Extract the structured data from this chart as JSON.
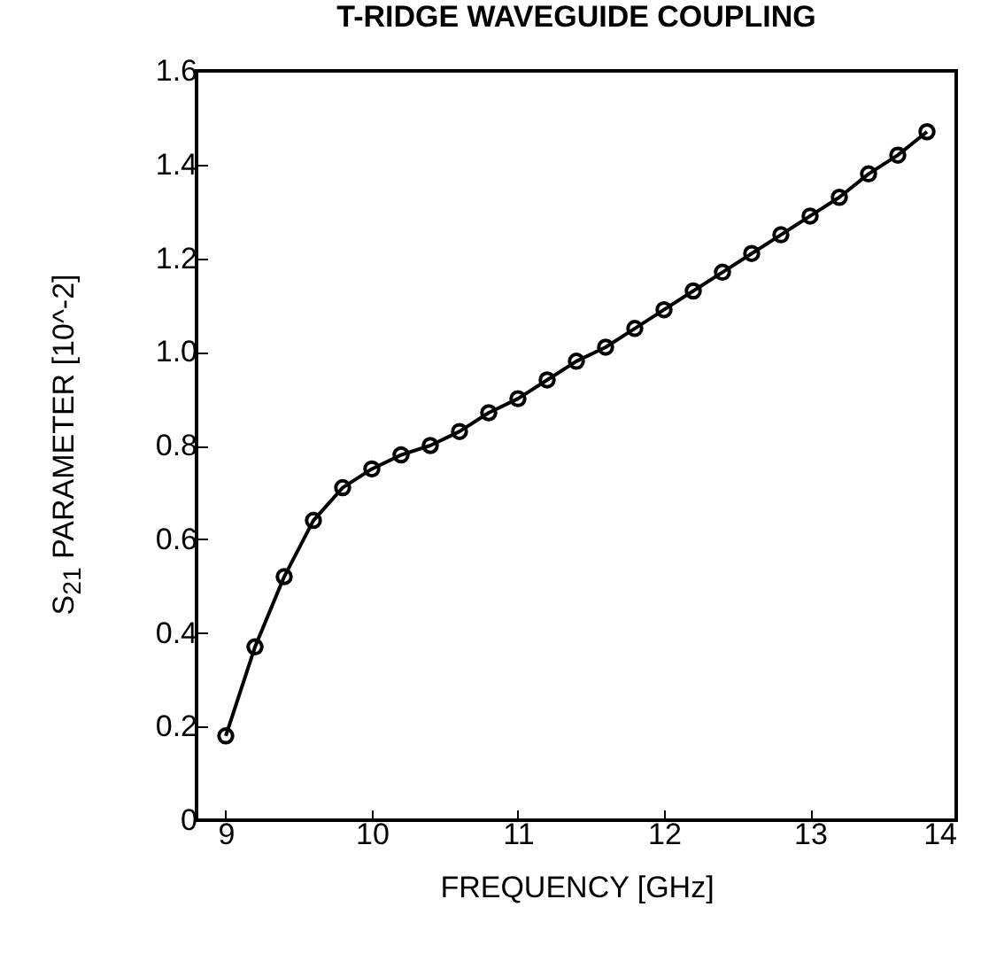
{
  "chart_data": {
    "type": "line",
    "title": "T-RIDGE WAVEGUIDE COUPLING",
    "xlabel": "FREQUENCY [GHz]",
    "ylabel": "S$_{21}$ PARAMETER [10^-2]",
    "x": [
      9,
      9.2,
      9.4,
      9.6,
      9.8,
      10,
      10.2,
      10.4,
      10.6,
      10.8,
      11,
      11.2,
      11.4,
      11.6,
      11.8,
      12,
      12.2,
      12.4,
      12.6,
      12.8,
      13,
      13.2,
      13.4,
      13.6,
      13.8
    ],
    "series": [
      {
        "color": "#000000",
        "values": [
          0.18,
          0.37,
          0.52,
          0.64,
          0.71,
          0.75,
          0.78,
          0.8,
          0.83,
          0.87,
          0.9,
          0.94,
          0.98,
          1.01,
          1.05,
          1.09,
          1.13,
          1.17,
          1.21,
          1.25,
          1.29,
          1.33,
          1.38,
          1.42,
          1.47
        ]
      }
    ],
    "xlim": [
      8.8,
      14
    ],
    "xticks": [
      9,
      10,
      11,
      12,
      13,
      14
    ],
    "ylim": [
      0,
      1.6
    ],
    "yticks": [
      0,
      {
        "value": 0.2,
        "label": "0.2"
      },
      {
        "value": 0.4,
        "label": "0.4"
      },
      {
        "value": 0.6,
        "label": "0.6"
      },
      {
        "value": 0.8,
        "label": "0.8"
      },
      {
        "value": 1.0,
        "label": "1.0"
      },
      {
        "value": 1.2,
        "label": "1.2"
      },
      {
        "value": 1.4,
        "label": "1.4"
      },
      {
        "value": 1.6,
        "label": "1.6"
      }
    ],
    "marker": "circle",
    "line_style": "solid",
    "grid": false
  }
}
